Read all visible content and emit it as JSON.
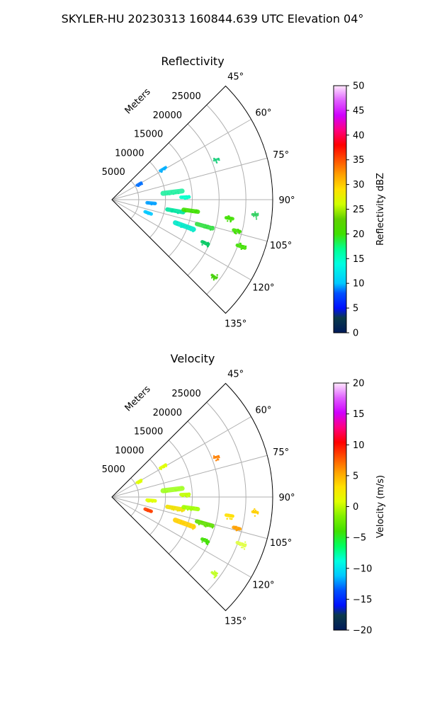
{
  "suptitle": "SKYLER-HU  20230313  160844.639 UTC Elevation 04°",
  "chart_data": [
    {
      "type": "polar-sector",
      "title": "Reflectivity",
      "range_label": "Meters",
      "theta_range_deg": [
        45,
        135
      ],
      "theta_ticks": [
        "45°",
        "60°",
        "75°",
        "90°",
        "105°",
        "120°",
        "135°"
      ],
      "r_max": 30000,
      "r_ticks": [
        "5000",
        "10000",
        "15000",
        "20000",
        "25000"
      ],
      "grid": true,
      "colorbar": {
        "label": "Reflectivity dBZ",
        "range": [
          0,
          50
        ],
        "ticks": [
          "0",
          "5",
          "10",
          "15",
          "20",
          "25",
          "30",
          "35",
          "40",
          "45",
          "50"
        ]
      }
    },
    {
      "type": "polar-sector",
      "title": "Velocity",
      "range_label": "Meters",
      "theta_range_deg": [
        45,
        135
      ],
      "theta_ticks": [
        "45°",
        "60°",
        "75°",
        "90°",
        "105°",
        "120°",
        "135°"
      ],
      "r_max": 30000,
      "r_ticks": [
        "5000",
        "10000",
        "15000",
        "20000",
        "25000"
      ],
      "grid": true,
      "colorbar": {
        "label": "Velocity (m/s)",
        "range": [
          -20,
          20
        ],
        "ticks": [
          "−20",
          "−15",
          "−10",
          "−5",
          "0",
          "5",
          "10",
          "15",
          "20"
        ]
      }
    }
  ],
  "colors": {
    "grid": "#b0b0b0",
    "frame": "#000000"
  }
}
